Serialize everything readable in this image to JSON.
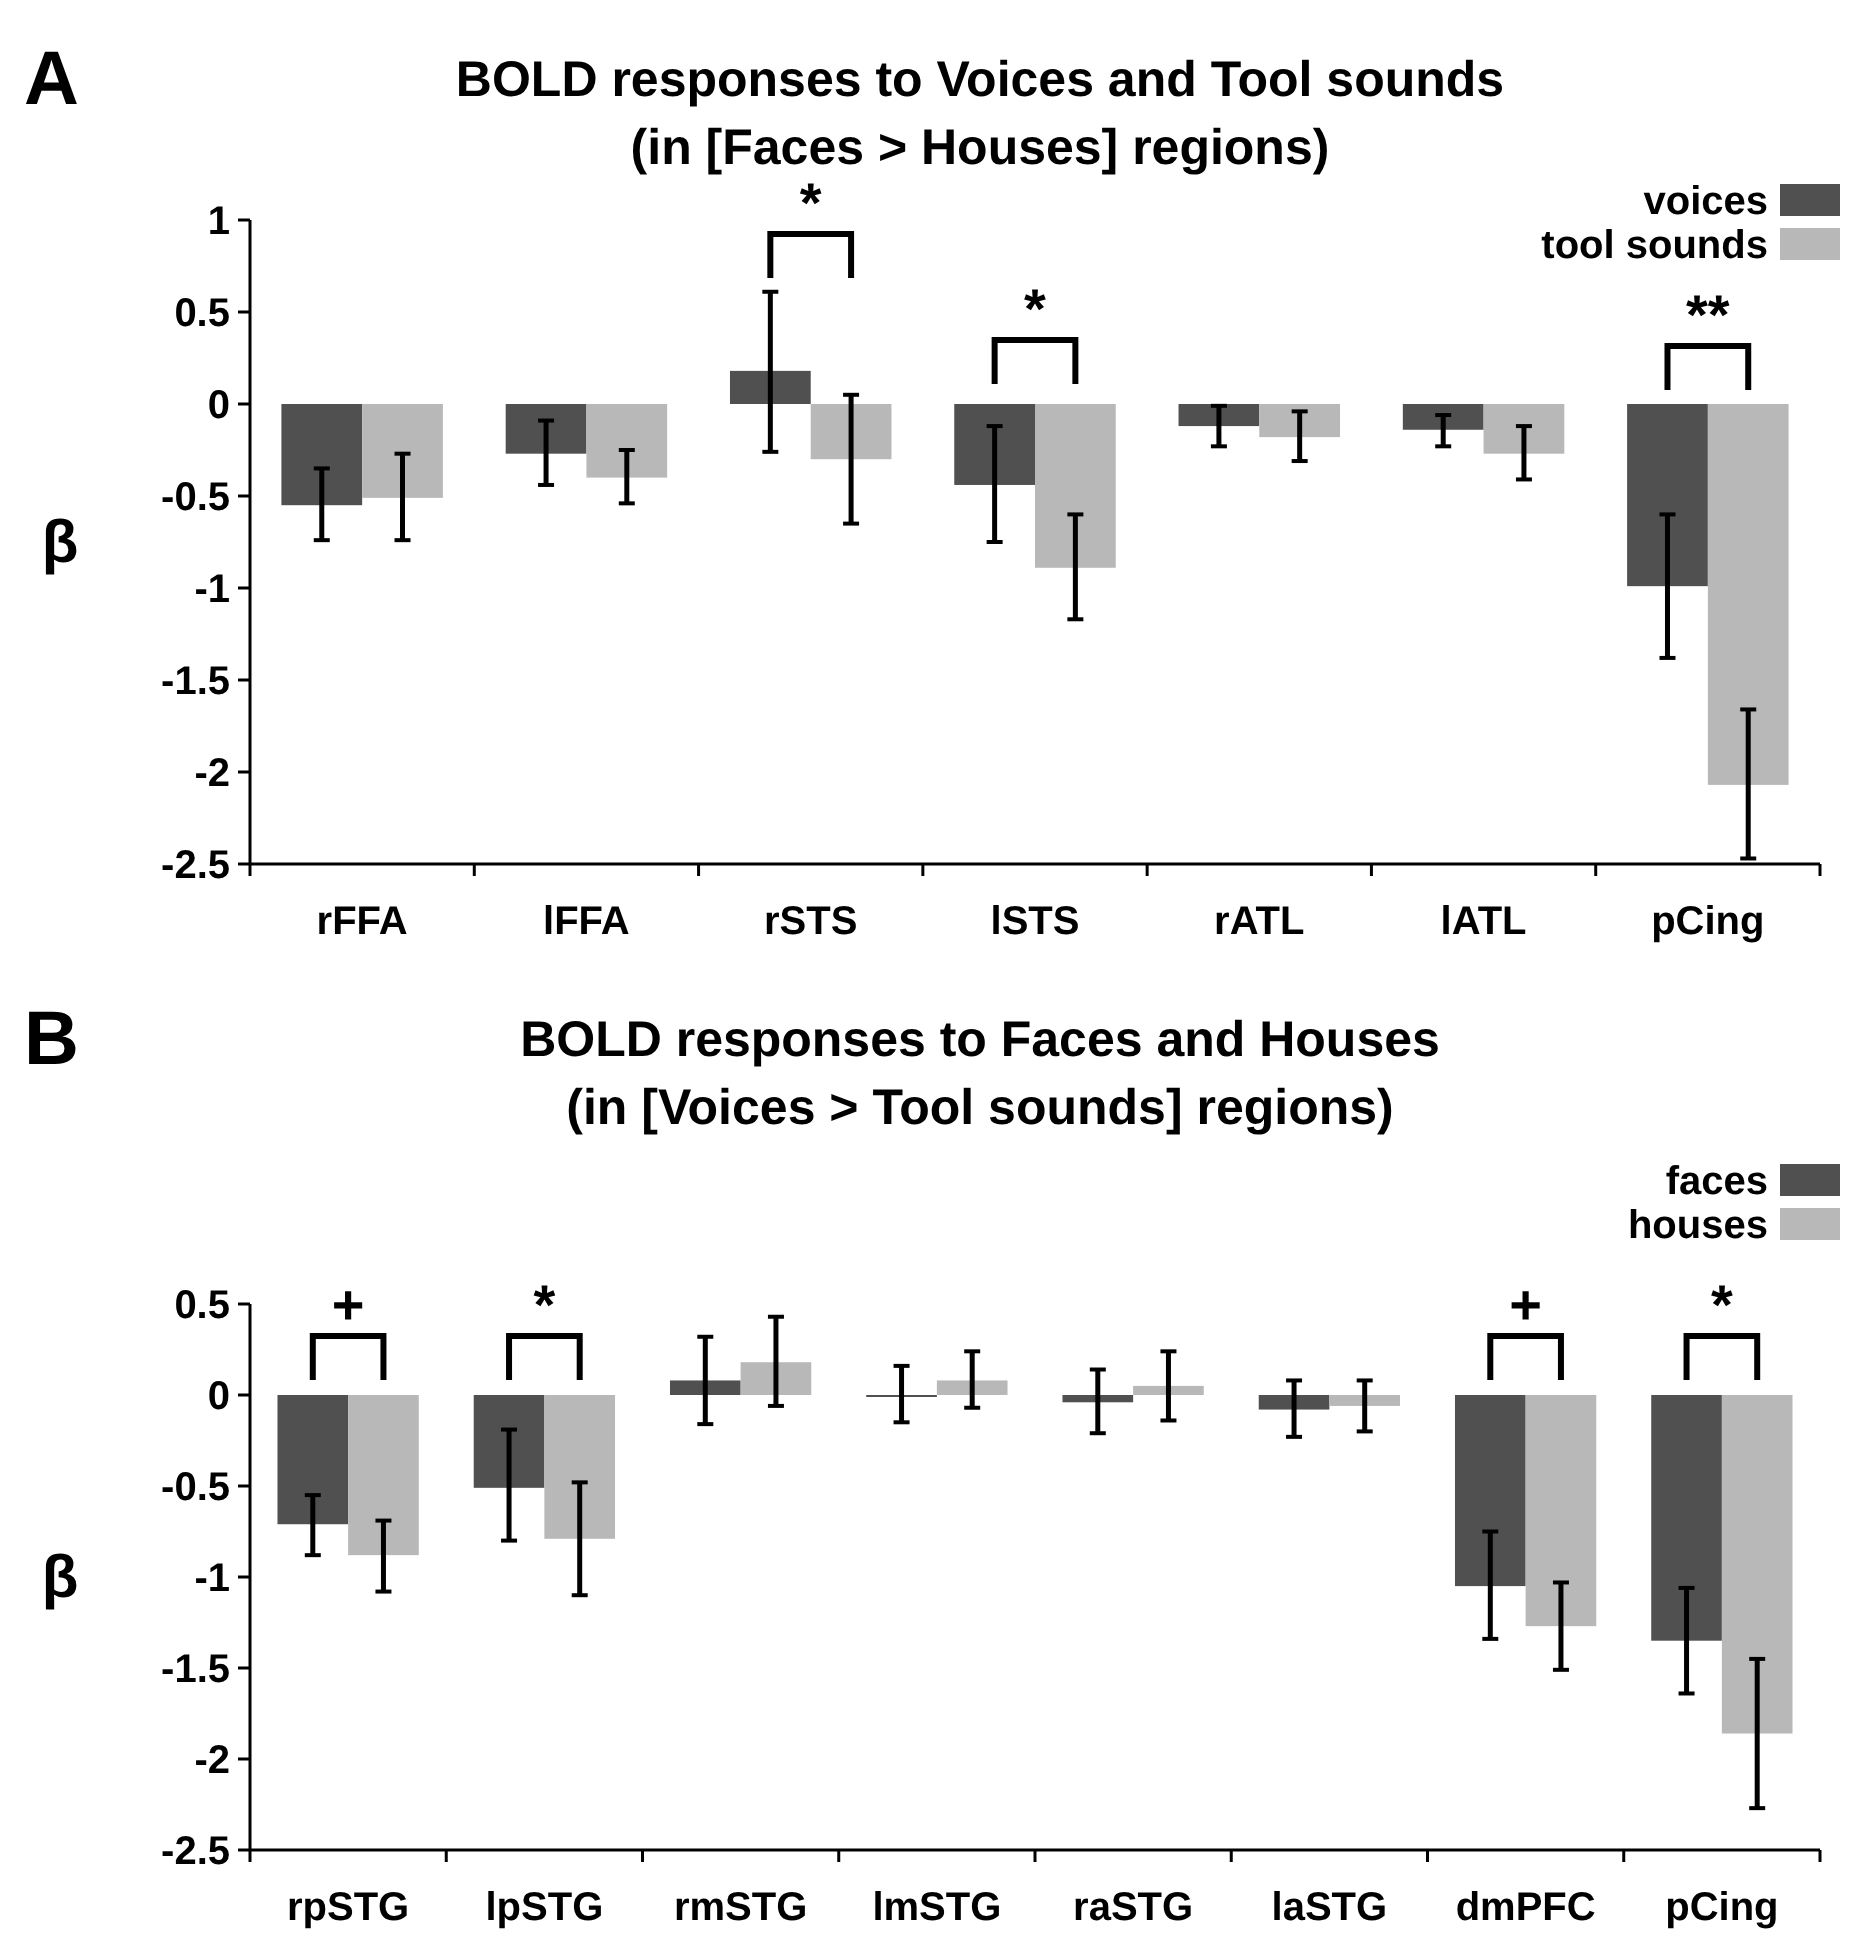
{
  "chart_data": [
    {
      "type": "bar",
      "title": "BOLD responses to Voices and Tool sounds",
      "subtitle": "(in [Faces > Houses] regions)",
      "ylabel": "β",
      "categories": [
        "rFFA",
        "lFFA",
        "rSTS",
        "lSTS",
        "rATL",
        "lATL",
        "pCing"
      ],
      "series": [
        {
          "name": "voices",
          "color": "#505050",
          "values": [
            -0.55,
            -0.27,
            0.18,
            -0.44,
            -0.12,
            -0.14,
            -0.99
          ],
          "errors": [
            [
              -0.74,
              -0.35
            ],
            [
              -0.44,
              -0.09
            ],
            [
              -0.26,
              0.61
            ],
            [
              -0.75,
              -0.12
            ],
            [
              -0.23,
              -0.01
            ],
            [
              -0.23,
              -0.06
            ],
            [
              -1.38,
              -0.6
            ]
          ]
        },
        {
          "name": "tool sounds",
          "color": "#b8b8b8",
          "values": [
            -0.51,
            -0.4,
            -0.3,
            -0.89,
            -0.18,
            -0.27,
            -2.07
          ],
          "errors": [
            [
              -0.74,
              -0.27
            ],
            [
              -0.54,
              -0.25
            ],
            [
              -0.65,
              0.05
            ],
            [
              -1.17,
              -0.6
            ],
            [
              -0.31,
              -0.04
            ],
            [
              -0.41,
              -0.12
            ],
            [
              -2.47,
              -1.66
            ]
          ]
        }
      ],
      "ylim": [
        -2.5,
        1
      ],
      "yticks": [
        -2.5,
        -2,
        -1.5,
        -1,
        -0.5,
        0,
        0.5,
        1
      ],
      "grid": false,
      "legend": "top right",
      "annotations": [
        "A",
        "*",
        "*",
        "**"
      ]
    },
    {
      "type": "bar",
      "title": "BOLD responses to Faces and Houses",
      "subtitle": "(in [Voices > Tool sounds] regions)",
      "ylabel": "β",
      "categories": [
        "rpSTG",
        "lpSTG",
        "rmSTG",
        "lmSTG",
        "raSTG",
        "laSTG",
        "dmPFC",
        "pCing"
      ],
      "series": [
        {
          "name": "faces",
          "color": "#505050",
          "values": [
            -0.71,
            -0.51,
            0.08,
            0.0,
            -0.04,
            -0.08,
            -1.05,
            -1.35
          ],
          "errors": [
            [
              -0.88,
              -0.55
            ],
            [
              -0.8,
              -0.19
            ],
            [
              -0.16,
              0.32
            ],
            [
              -0.15,
              0.16
            ],
            [
              -0.21,
              0.14
            ],
            [
              -0.23,
              0.08
            ],
            [
              -1.34,
              -0.75
            ],
            [
              -1.64,
              -1.06
            ]
          ]
        },
        {
          "name": "houses",
          "color": "#b8b8b8",
          "values": [
            -0.88,
            -0.79,
            0.18,
            0.08,
            0.05,
            -0.06,
            -1.27,
            -1.86
          ],
          "errors": [
            [
              -1.08,
              -0.69
            ],
            [
              -1.1,
              -0.48
            ],
            [
              -0.06,
              0.43
            ],
            [
              -0.07,
              0.24
            ],
            [
              -0.14,
              0.24
            ],
            [
              -0.2,
              0.08
            ],
            [
              -1.51,
              -1.03
            ],
            [
              -2.27,
              -1.45
            ]
          ]
        }
      ],
      "ylim": [
        -2.5,
        0.5
      ],
      "yticks": [
        -2.5,
        -2,
        -1.5,
        -1,
        -0.5,
        0,
        0.5
      ],
      "grid": false,
      "legend": "top right",
      "annotations": [
        "B",
        "+",
        "*",
        "+",
        "*"
      ]
    }
  ]
}
